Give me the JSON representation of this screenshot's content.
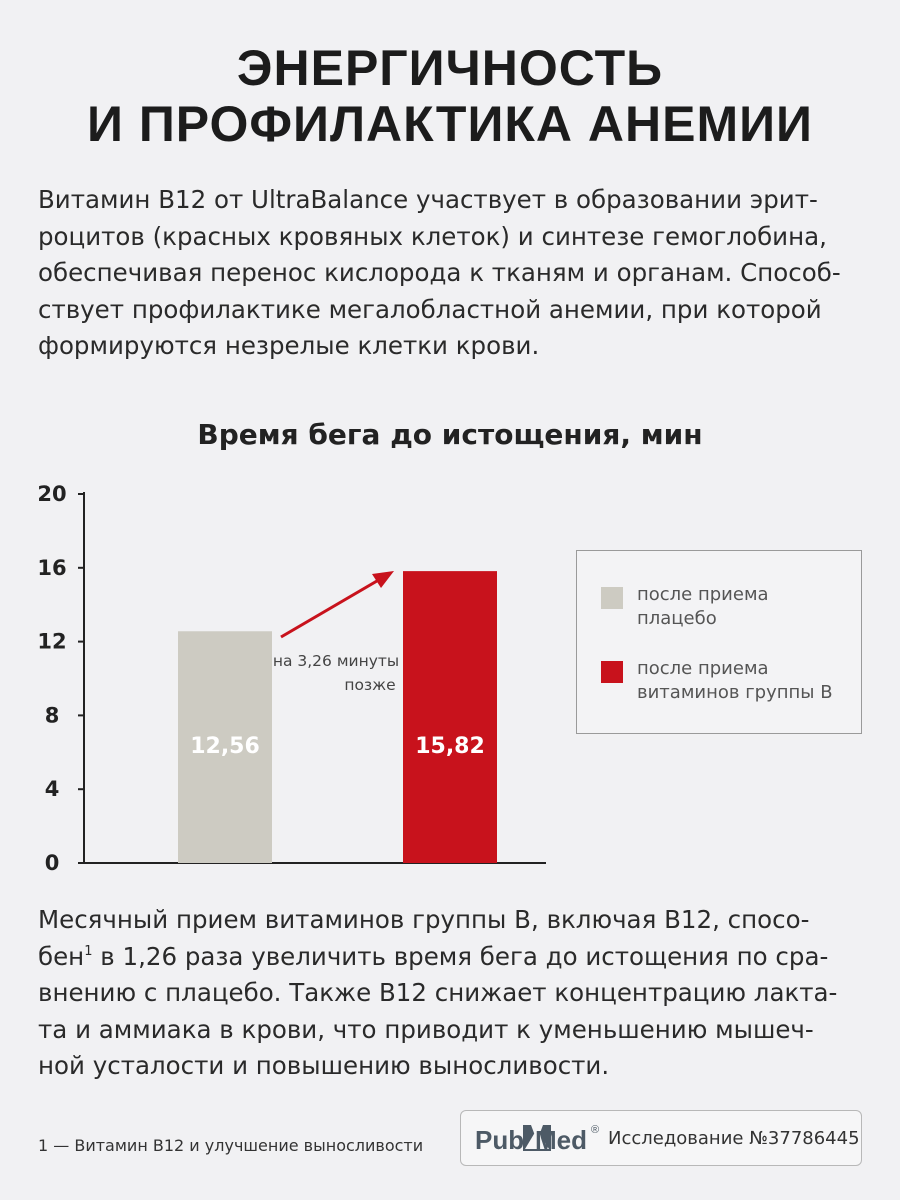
{
  "heading": {
    "line1": "ЭНЕРГИЧНОСТЬ",
    "line2": "И ПРОФИЛАКТИКА АНЕМИИ"
  },
  "intro": {
    "lines": [
      "Витамин B12 от UltraBalance участвует в образовании эрит-",
      "роцитов (красных кровяных клеток) и синтезе гемоглобина,",
      "обеспечивая перенос кислорода к тканям и органам. Способ-",
      "ствует профилактике мегалобластной анемии, при которой",
      "формируются незрелые клетки крови."
    ]
  },
  "chart_data": {
    "type": "bar",
    "title": "Время бега до истощения, мин",
    "categories": [
      "после приема плацебо",
      "после приема витаминов группы B"
    ],
    "values": [
      12.56,
      15.82
    ],
    "value_labels": [
      "12,56",
      "15,82"
    ],
    "colors": [
      "#cdcbc2",
      "#c8121c"
    ],
    "ylim": [
      0,
      20
    ],
    "yticks": [
      0,
      4,
      8,
      12,
      16,
      20
    ],
    "grid": false,
    "legend_position": "right",
    "annotation": {
      "line1": "на 3,26 минуты",
      "line2": "позже",
      "arrow_color": "#c8121c"
    }
  },
  "legend": {
    "items": [
      {
        "line1": "после приема",
        "line2": "плацебо",
        "color": "#cdcbc2"
      },
      {
        "line1": "после приема",
        "line2": "витаминов группы B",
        "color": "#c8121c"
      }
    ]
  },
  "outro": {
    "line1": "Месячный прием витаминов группы B, включая B12, спосо-",
    "line2_a": "бен",
    "line2_sup": "1",
    "line2_b": " в 1,26 раза увеличить время бега до истощения по сра-",
    "line3": "внению с плацебо. Также B12 снижает концентрацию лакта-",
    "line4": "та и аммиака в крови, что приводит к уменьшению мышеч-",
    "line5": "ной усталости и повышению выносливости."
  },
  "footnote": "1 — Витамин B12 и улучшение выносливости",
  "source": {
    "logo_text_a": "Pub",
    "logo_text_b": "Med",
    "logo_mark": "®",
    "study": "Исследование №37786445"
  }
}
